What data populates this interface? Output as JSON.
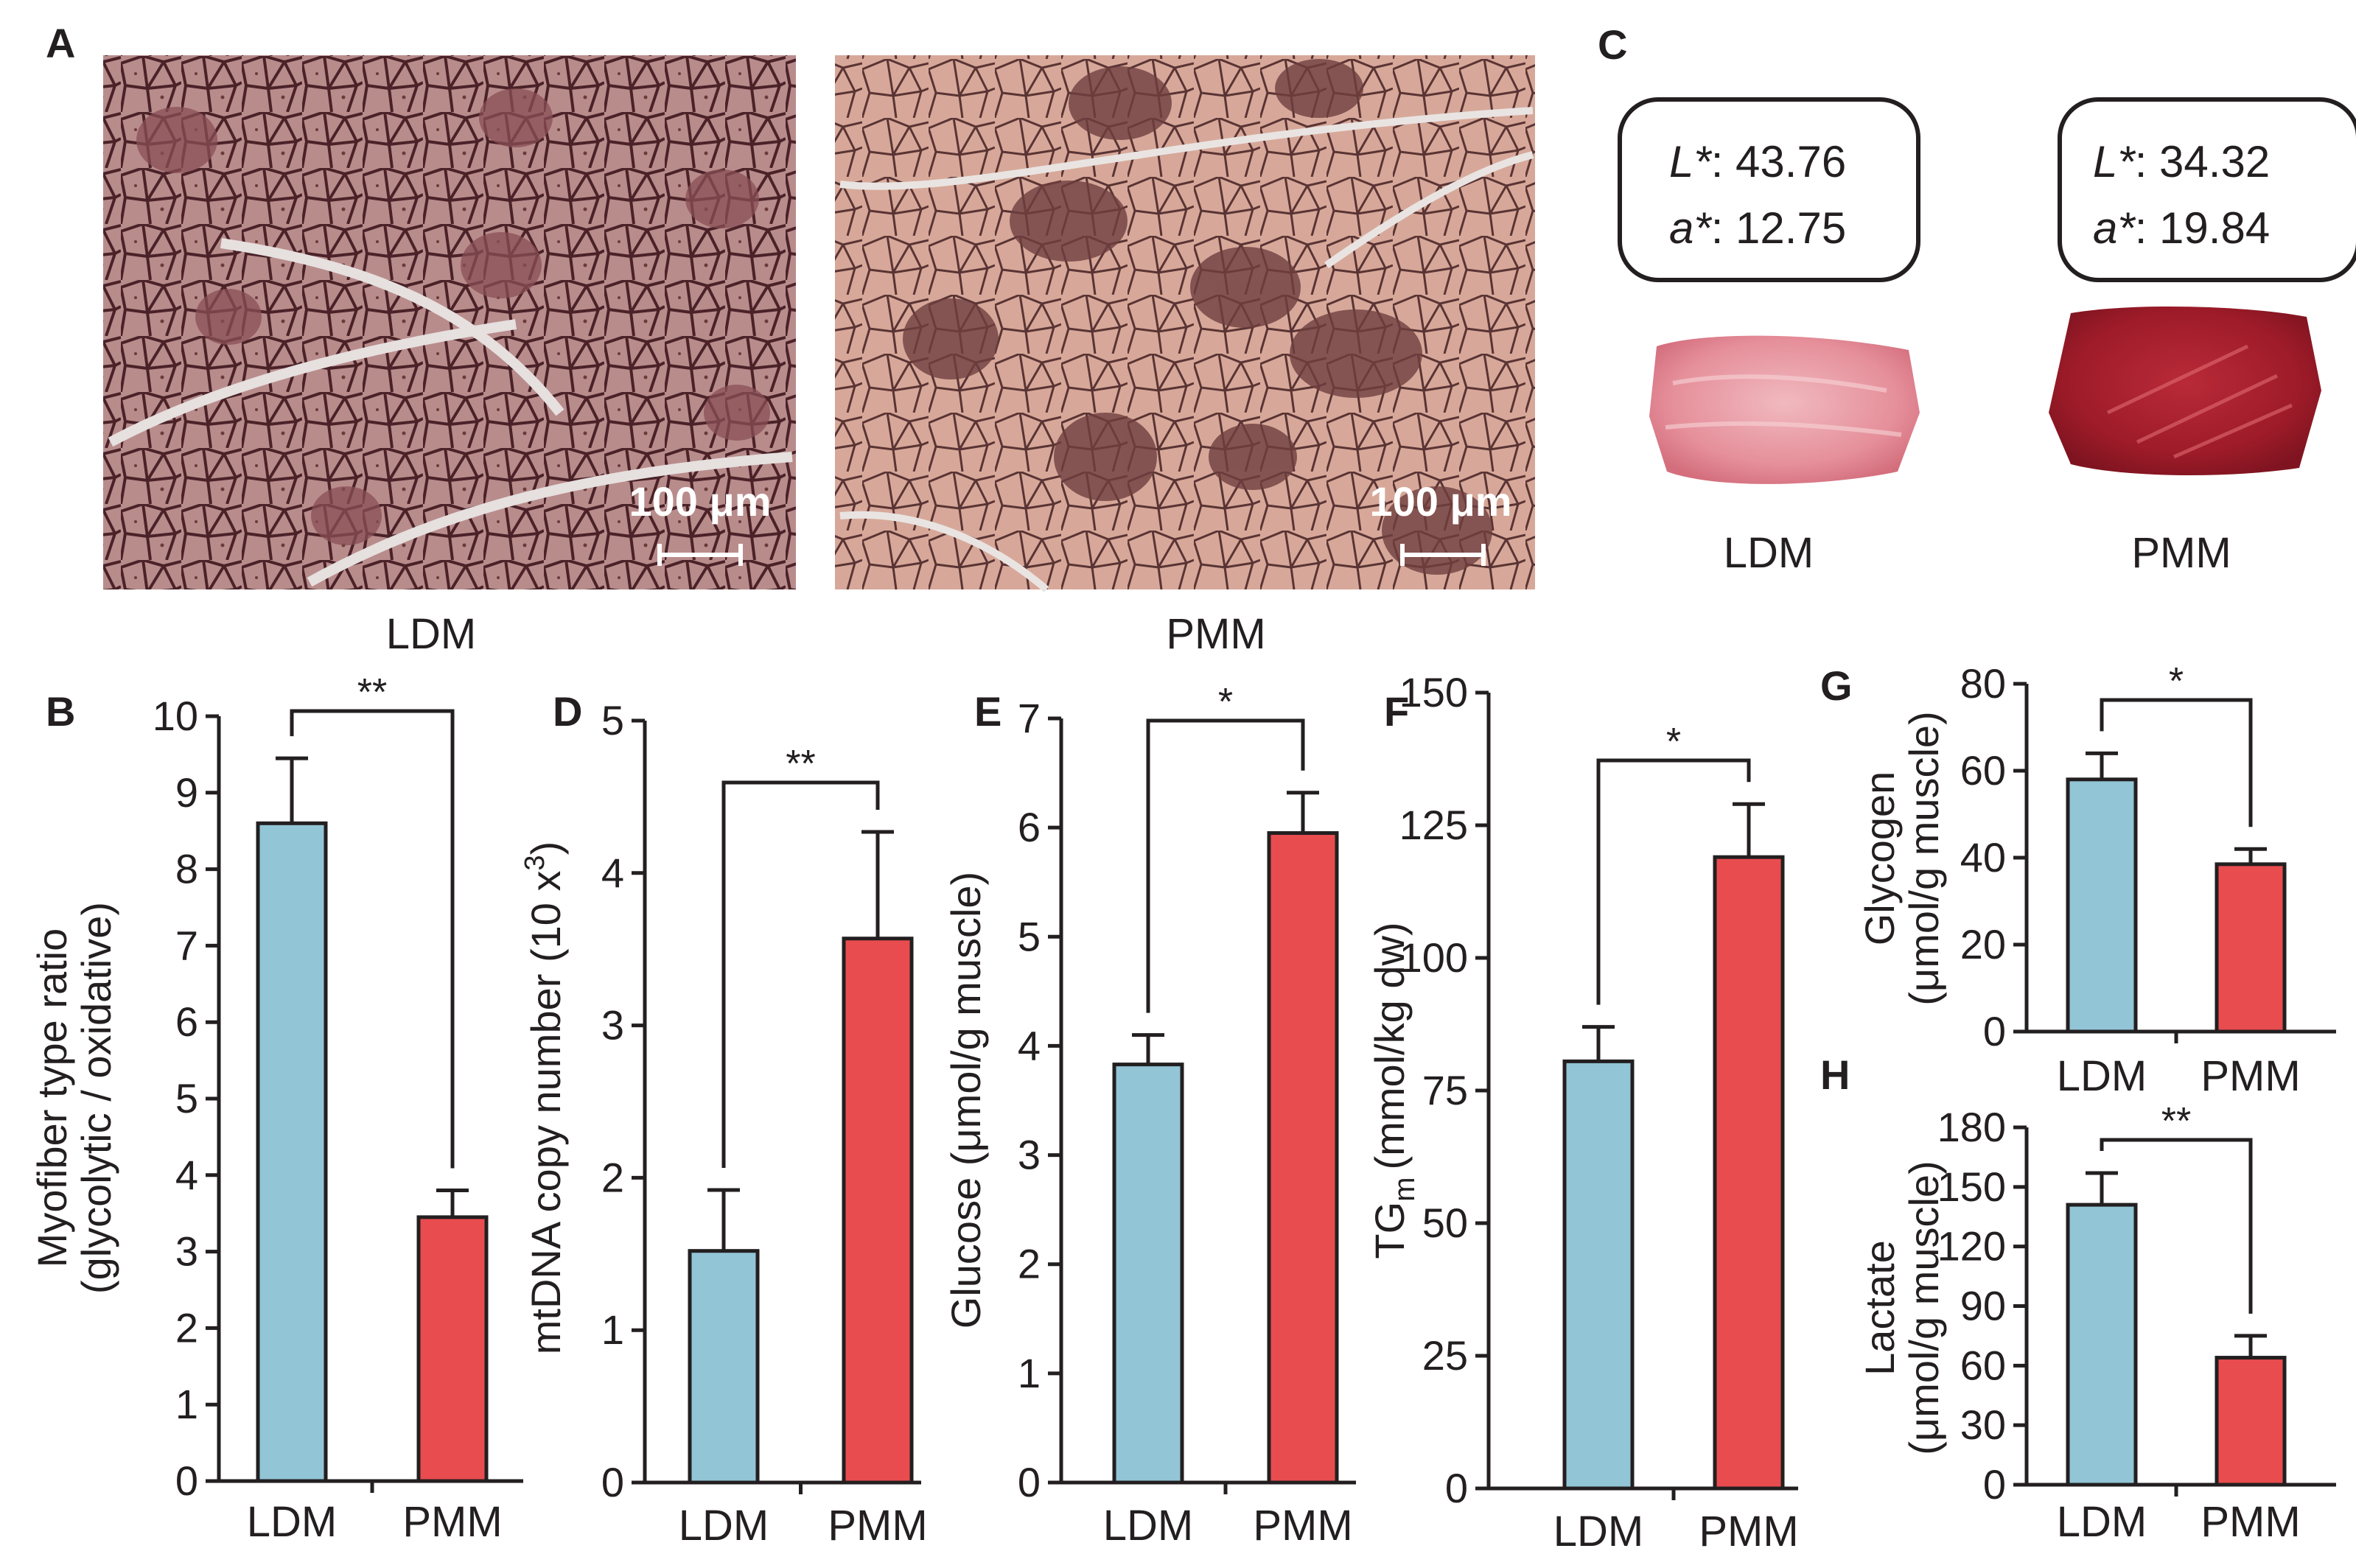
{
  "colors": {
    "ldm_bar": "#92c5d6",
    "pmm_bar": "#e94c4f",
    "axis": "#231f20",
    "ldm_meat": "#e7a0a6",
    "pmm_meat": "#a8202c",
    "ldm_stain": "#b98c8c",
    "pmm_stain": "#d7a899"
  },
  "panel_a": {
    "letter": "A",
    "images": [
      {
        "caption": "LDM",
        "scale_label": "100 μm",
        "icon": "ldm-histology-image"
      },
      {
        "caption": "PMM",
        "scale_label": "100 μm",
        "icon": "pmm-histology-image"
      }
    ]
  },
  "panel_c": {
    "letter": "C",
    "samples": [
      {
        "caption": "LDM",
        "l_label": "L*",
        "l_value": ": 43.76",
        "a_label": "a*",
        "a_value": ": 12.75",
        "icon": "ldm-meat-photo"
      },
      {
        "caption": "PMM",
        "l_label": "L*",
        "l_value": ": 34.32",
        "a_label": "a*",
        "a_value": ": 19.84",
        "icon": "pmm-meat-photo"
      }
    ]
  },
  "chart_data": [
    {
      "id": "B",
      "letter": "B",
      "type": "bar",
      "categories": [
        "LDM",
        "PMM"
      ],
      "values": [
        8.6,
        3.45
      ],
      "errors": [
        0.85,
        0.35
      ],
      "ylabel": [
        "Myofiber type ratio",
        "(glycolytic / oxidative)"
      ],
      "ylim": [
        0,
        10
      ],
      "yticks": [
        0,
        1,
        2,
        3,
        4,
        5,
        6,
        7,
        8,
        9,
        10
      ],
      "significance": "**"
    },
    {
      "id": "D",
      "letter": "D",
      "type": "bar",
      "categories": [
        "LDM",
        "PMM"
      ],
      "values": [
        1.52,
        3.57
      ],
      "errors": [
        0.4,
        0.7
      ],
      "ylabel": [
        "mtDNA copy number (10 x",
        "3",
        ")"
      ],
      "ylim": [
        0,
        5
      ],
      "yticks": [
        0,
        1,
        2,
        3,
        4,
        5
      ],
      "significance": "**"
    },
    {
      "id": "E",
      "letter": "E",
      "type": "bar",
      "categories": [
        "LDM",
        "PMM"
      ],
      "values": [
        3.83,
        5.95
      ],
      "errors": [
        0.27,
        0.37
      ],
      "ylabel": [
        "Glucose (μmol/g muscle)"
      ],
      "ylim": [
        0,
        7
      ],
      "yticks": [
        0,
        1,
        2,
        3,
        4,
        5,
        6,
        7
      ],
      "significance": "*"
    },
    {
      "id": "F",
      "letter": "F",
      "type": "bar",
      "categories": [
        "LDM",
        "PMM"
      ],
      "values": [
        80.5,
        119
      ],
      "errors": [
        6.5,
        10
      ],
      "ylabel": [
        "TG",
        "m",
        "(mmol/kg dw)"
      ],
      "ylim": [
        0,
        150
      ],
      "yticks": [
        0,
        25,
        50,
        75,
        100,
        125,
        150
      ],
      "significance": "*"
    },
    {
      "id": "G",
      "letter": "G",
      "type": "bar",
      "categories": [
        "LDM",
        "PMM"
      ],
      "values": [
        58,
        38.5
      ],
      "errors": [
        6,
        3.5
      ],
      "ylabel": [
        "Glycogen",
        "(μmol/g muscle)"
      ],
      "ylim": [
        0,
        80
      ],
      "yticks": [
        0,
        20,
        40,
        60,
        80
      ],
      "significance": "*"
    },
    {
      "id": "H",
      "letter": "H",
      "type": "bar",
      "categories": [
        "LDM",
        "PMM"
      ],
      "values": [
        141,
        64
      ],
      "errors": [
        16,
        11
      ],
      "ylabel": [
        "Lactate",
        "(μmol/g muscle)"
      ],
      "ylim": [
        0,
        180
      ],
      "yticks": [
        0,
        30,
        60,
        90,
        120,
        150,
        180
      ],
      "significance": "**"
    }
  ]
}
